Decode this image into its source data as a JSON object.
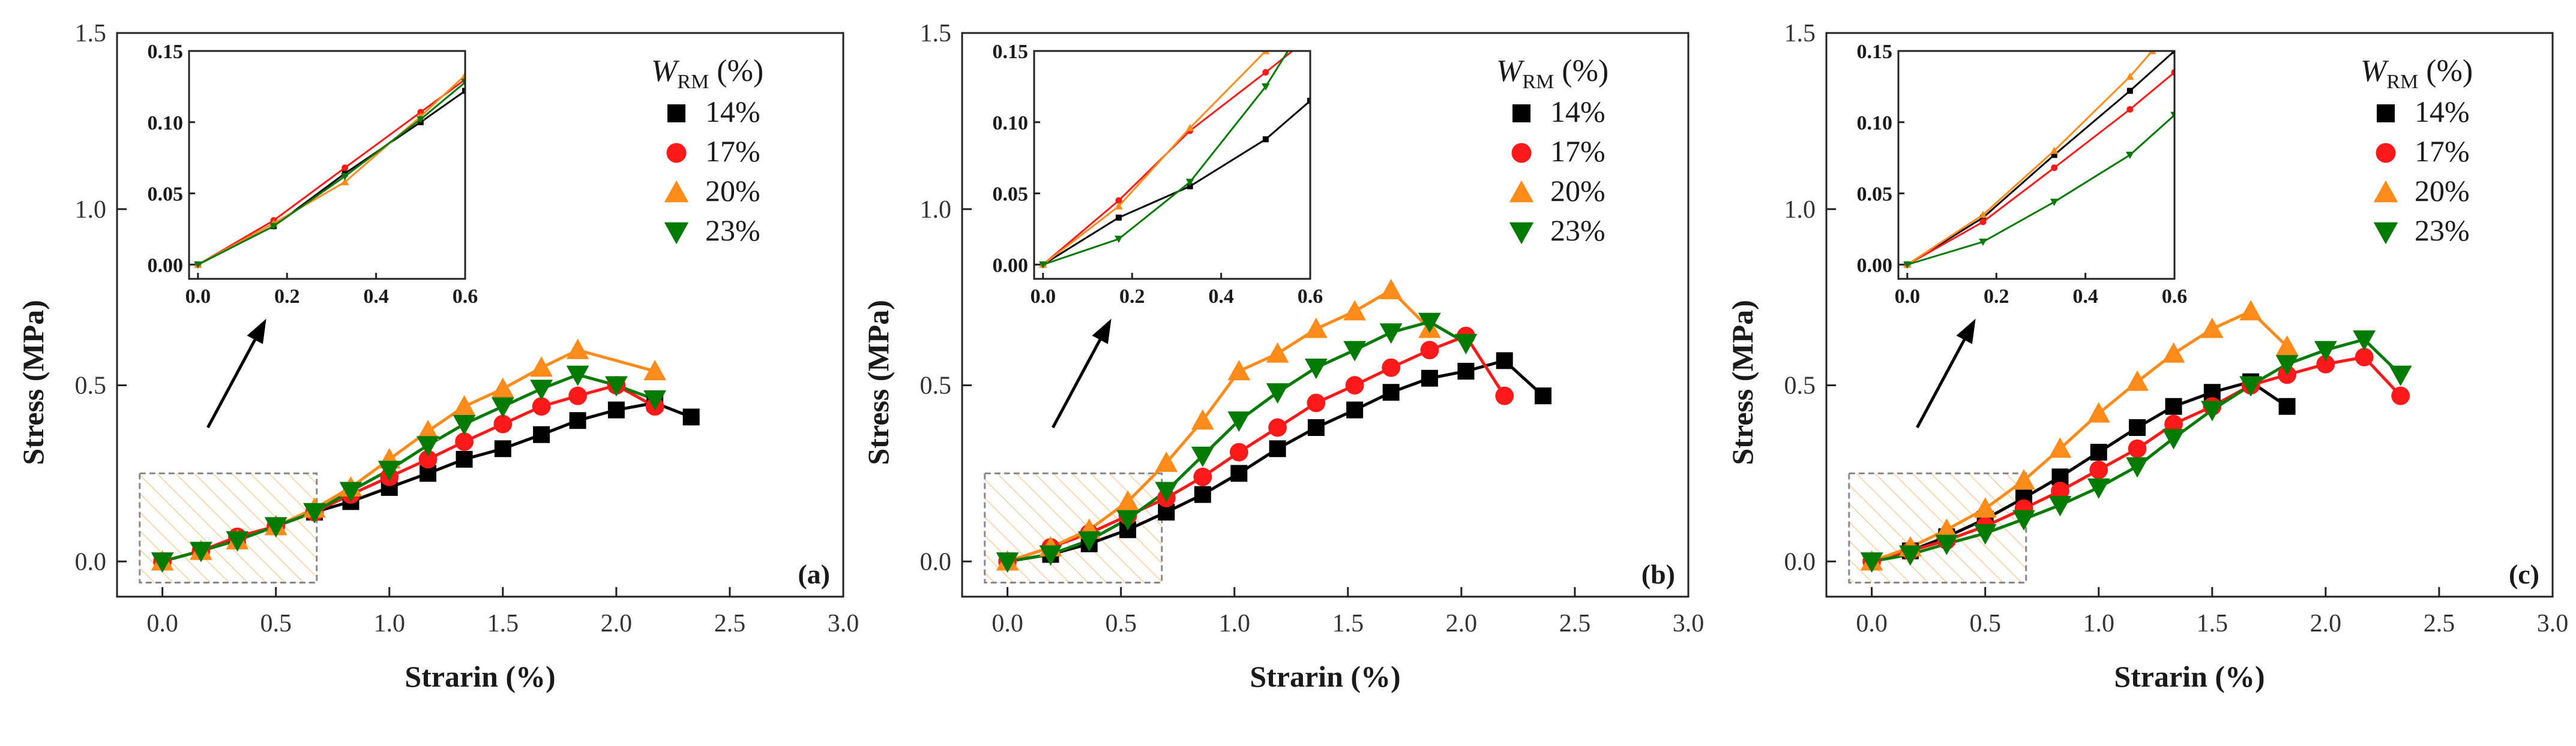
{
  "figure": {
    "legend_title": "W",
    "legend_title_sub": "RM",
    "legend_title_unit": " (%)",
    "xlabel": "Strarin (%)",
    "ylabel": "Stress (MPa)"
  },
  "series_meta": [
    {
      "name": "14%",
      "color": "#000000",
      "marker": "square"
    },
    {
      "name": "17%",
      "color": "#ff1a1a",
      "marker": "circle"
    },
    {
      "name": "20%",
      "color": "#ff8c1a",
      "marker": "triangle-up"
    },
    {
      "name": "23%",
      "color": "#007a00",
      "marker": "triangle-down"
    }
  ],
  "chart_data": [
    {
      "type": "line",
      "panel": "(a)",
      "xlim": [
        -0.2,
        3.0
      ],
      "ylim": [
        -0.1,
        1.5
      ],
      "xticks": [
        0.0,
        0.5,
        1.0,
        1.5,
        2.0,
        2.5,
        3.0
      ],
      "yticks": [
        0.0,
        0.5,
        1.0,
        1.5
      ],
      "xlabel": "Strarin (%)",
      "ylabel": "Stress (MPa)",
      "grid": false,
      "legend_position": "top-right",
      "series": [
        {
          "name": "14%",
          "x": [
            0.0,
            0.17,
            0.33,
            0.5,
            0.67,
            0.83,
            1.0,
            1.17,
            1.33,
            1.5,
            1.67,
            1.83,
            2.0,
            2.17,
            2.33
          ],
          "y": [
            0.0,
            0.03,
            0.06,
            0.1,
            0.14,
            0.17,
            0.21,
            0.25,
            0.29,
            0.32,
            0.36,
            0.4,
            0.43,
            0.45,
            0.41
          ]
        },
        {
          "name": "17%",
          "x": [
            0.0,
            0.17,
            0.33,
            0.5,
            0.67,
            0.83,
            1.0,
            1.17,
            1.33,
            1.5,
            1.67,
            1.83,
            2.0,
            2.17
          ],
          "y": [
            0.0,
            0.03,
            0.07,
            0.1,
            0.14,
            0.19,
            0.24,
            0.29,
            0.34,
            0.39,
            0.44,
            0.47,
            0.5,
            0.44
          ]
        },
        {
          "name": "20%",
          "x": [
            0.0,
            0.17,
            0.33,
            0.5,
            0.67,
            0.83,
            1.0,
            1.17,
            1.33,
            1.5,
            1.67,
            1.83,
            2.17
          ],
          "y": [
            0.0,
            0.03,
            0.06,
            0.1,
            0.15,
            0.21,
            0.29,
            0.37,
            0.44,
            0.49,
            0.55,
            0.6,
            0.54
          ]
        },
        {
          "name": "23%",
          "x": [
            0.0,
            0.17,
            0.33,
            0.5,
            0.67,
            0.83,
            1.0,
            1.17,
            1.33,
            1.5,
            1.67,
            1.83,
            2.0,
            2.17
          ],
          "y": [
            0.0,
            0.03,
            0.06,
            0.1,
            0.14,
            0.2,
            0.26,
            0.33,
            0.39,
            0.44,
            0.49,
            0.53,
            0.5,
            0.46
          ]
        }
      ],
      "inset": {
        "xlim": [
          -0.02,
          0.6
        ],
        "ylim": [
          -0.01,
          0.15
        ],
        "xticks": [
          0.0,
          0.2,
          0.4,
          0.6
        ],
        "yticks": [
          0.0,
          0.05,
          0.1,
          0.15
        ],
        "xtick_labels": [
          "0.0",
          "0.2",
          "0.4",
          "0.6"
        ],
        "ytick_labels": [
          "0.00",
          "0.05",
          "0.10",
          "0.15"
        ],
        "series": [
          {
            "name": "14%",
            "x": [
              0.0,
              0.17,
              0.33,
              0.5,
              0.6
            ],
            "y": [
              0.0,
              0.027,
              0.064,
              0.1,
              0.122
            ]
          },
          {
            "name": "17%",
            "x": [
              0.0,
              0.17,
              0.33,
              0.5,
              0.6
            ],
            "y": [
              0.0,
              0.031,
              0.068,
              0.107,
              0.13
            ]
          },
          {
            "name": "20%",
            "x": [
              0.0,
              0.17,
              0.33,
              0.5,
              0.6
            ],
            "y": [
              0.0,
              0.029,
              0.058,
              0.104,
              0.133
            ]
          },
          {
            "name": "23%",
            "x": [
              0.0,
              0.17,
              0.33,
              0.5,
              0.6
            ],
            "y": [
              0.0,
              0.027,
              0.062,
              0.102,
              0.128
            ]
          }
        ]
      }
    },
    {
      "type": "line",
      "panel": "(b)",
      "xlim": [
        -0.2,
        3.0
      ],
      "ylim": [
        -0.1,
        1.5
      ],
      "xticks": [
        0.0,
        0.5,
        1.0,
        1.5,
        2.0,
        2.5,
        3.0
      ],
      "yticks": [
        0.0,
        0.5,
        1.0,
        1.5
      ],
      "xlabel": "Strarin (%)",
      "ylabel": "Stress (MPa)",
      "grid": false,
      "legend_position": "top-right",
      "series": [
        {
          "name": "14%",
          "x": [
            0.0,
            0.19,
            0.36,
            0.53,
            0.7,
            0.86,
            1.02,
            1.19,
            1.36,
            1.53,
            1.69,
            1.86,
            2.02,
            2.19,
            2.36
          ],
          "y": [
            0.0,
            0.02,
            0.05,
            0.09,
            0.14,
            0.19,
            0.25,
            0.32,
            0.38,
            0.43,
            0.48,
            0.52,
            0.54,
            0.57,
            0.47
          ]
        },
        {
          "name": "17%",
          "x": [
            0.0,
            0.19,
            0.36,
            0.53,
            0.7,
            0.86,
            1.02,
            1.19,
            1.36,
            1.53,
            1.69,
            1.86,
            2.02,
            2.19
          ],
          "y": [
            0.0,
            0.04,
            0.08,
            0.13,
            0.18,
            0.24,
            0.31,
            0.38,
            0.45,
            0.5,
            0.55,
            0.6,
            0.64,
            0.47
          ]
        },
        {
          "name": "20%",
          "x": [
            0.0,
            0.19,
            0.36,
            0.53,
            0.7,
            0.86,
            1.02,
            1.19,
            1.36,
            1.53,
            1.69,
            1.86
          ],
          "y": [
            0.0,
            0.04,
            0.09,
            0.17,
            0.28,
            0.4,
            0.54,
            0.59,
            0.66,
            0.71,
            0.77,
            0.66
          ]
        },
        {
          "name": "23%",
          "x": [
            0.0,
            0.19,
            0.36,
            0.53,
            0.7,
            0.86,
            1.02,
            1.19,
            1.36,
            1.53,
            1.69,
            1.86,
            2.02
          ],
          "y": [
            0.0,
            0.02,
            0.06,
            0.12,
            0.2,
            0.3,
            0.4,
            0.48,
            0.55,
            0.6,
            0.65,
            0.68,
            0.62
          ]
        }
      ],
      "inset": {
        "xlim": [
          -0.02,
          0.6
        ],
        "ylim": [
          -0.01,
          0.15
        ],
        "xticks": [
          0.0,
          0.2,
          0.4,
          0.6
        ],
        "yticks": [
          0.0,
          0.05,
          0.1,
          0.15
        ],
        "xtick_labels": [
          "0.0",
          "0.2",
          "0.4",
          "0.6"
        ],
        "ytick_labels": [
          "0.00",
          "0.05",
          "0.10",
          "0.15"
        ],
        "series": [
          {
            "name": "14%",
            "x": [
              0.0,
              0.17,
              0.33,
              0.5,
              0.6
            ],
            "y": [
              0.0,
              0.033,
              0.055,
              0.088,
              0.115
            ]
          },
          {
            "name": "17%",
            "x": [
              0.0,
              0.17,
              0.33,
              0.5,
              0.6
            ],
            "y": [
              0.0,
              0.045,
              0.094,
              0.135,
              0.16
            ]
          },
          {
            "name": "20%",
            "x": [
              0.0,
              0.17,
              0.33,
              0.5,
              0.55
            ],
            "y": [
              0.0,
              0.041,
              0.096,
              0.15,
              0.17
            ]
          },
          {
            "name": "23%",
            "x": [
              0.0,
              0.17,
              0.33,
              0.5,
              0.56
            ],
            "y": [
              0.0,
              0.018,
              0.058,
              0.125,
              0.155
            ]
          }
        ]
      }
    },
    {
      "type": "line",
      "panel": "(c)",
      "xlim": [
        -0.2,
        3.0
      ],
      "ylim": [
        -0.1,
        1.5
      ],
      "xticks": [
        0.0,
        0.5,
        1.0,
        1.5,
        2.0,
        2.5,
        3.0
      ],
      "yticks": [
        0.0,
        0.5,
        1.0,
        1.5
      ],
      "xlabel": "Strarin (%)",
      "ylabel": "Stress (MPa)",
      "grid": false,
      "legend_position": "top-right",
      "series": [
        {
          "name": "14%",
          "x": [
            0.0,
            0.17,
            0.33,
            0.5,
            0.67,
            0.83,
            1.0,
            1.17,
            1.33,
            1.5,
            1.67,
            1.83
          ],
          "y": [
            0.0,
            0.03,
            0.07,
            0.12,
            0.18,
            0.24,
            0.31,
            0.38,
            0.44,
            0.48,
            0.51,
            0.44
          ]
        },
        {
          "name": "17%",
          "x": [
            0.0,
            0.17,
            0.33,
            0.5,
            0.67,
            0.83,
            1.0,
            1.17,
            1.33,
            1.5,
            1.67,
            1.83,
            2.0,
            2.17,
            2.33
          ],
          "y": [
            0.0,
            0.03,
            0.06,
            0.1,
            0.15,
            0.2,
            0.26,
            0.32,
            0.39,
            0.44,
            0.5,
            0.53,
            0.56,
            0.58,
            0.47
          ]
        },
        {
          "name": "20%",
          "x": [
            0.0,
            0.17,
            0.33,
            0.5,
            0.67,
            0.83,
            1.0,
            1.17,
            1.33,
            1.5,
            1.67,
            1.83
          ],
          "y": [
            0.0,
            0.04,
            0.09,
            0.15,
            0.23,
            0.32,
            0.42,
            0.51,
            0.59,
            0.66,
            0.71,
            0.61
          ]
        },
        {
          "name": "23%",
          "x": [
            0.0,
            0.17,
            0.33,
            0.5,
            0.67,
            0.83,
            1.0,
            1.17,
            1.33,
            1.5,
            1.67,
            1.83,
            2.0,
            2.17,
            2.33
          ],
          "y": [
            0.0,
            0.02,
            0.05,
            0.08,
            0.12,
            0.16,
            0.21,
            0.27,
            0.35,
            0.43,
            0.5,
            0.56,
            0.6,
            0.63,
            0.53
          ]
        }
      ],
      "inset": {
        "xlim": [
          -0.02,
          0.6
        ],
        "ylim": [
          -0.01,
          0.15
        ],
        "xticks": [
          0.0,
          0.2,
          0.4,
          0.6
        ],
        "yticks": [
          0.0,
          0.05,
          0.1,
          0.15
        ],
        "xtick_labels": [
          "0.0",
          "0.2",
          "0.4",
          "0.6"
        ],
        "ytick_labels": [
          "0.00",
          "0.05",
          "0.10",
          "0.15"
        ],
        "series": [
          {
            "name": "14%",
            "x": [
              0.0,
              0.17,
              0.33,
              0.5,
              0.6
            ],
            "y": [
              0.0,
              0.033,
              0.077,
              0.122,
              0.15
            ]
          },
          {
            "name": "17%",
            "x": [
              0.0,
              0.17,
              0.33,
              0.5,
              0.6
            ],
            "y": [
              0.0,
              0.03,
              0.068,
              0.109,
              0.135
            ]
          },
          {
            "name": "20%",
            "x": [
              0.0,
              0.17,
              0.33,
              0.5,
              0.55
            ],
            "y": [
              0.0,
              0.035,
              0.08,
              0.132,
              0.15
            ]
          },
          {
            "name": "23%",
            "x": [
              0.0,
              0.17,
              0.33,
              0.5,
              0.6
            ],
            "y": [
              0.0,
              0.016,
              0.044,
              0.077,
              0.105
            ]
          }
        ]
      }
    }
  ]
}
